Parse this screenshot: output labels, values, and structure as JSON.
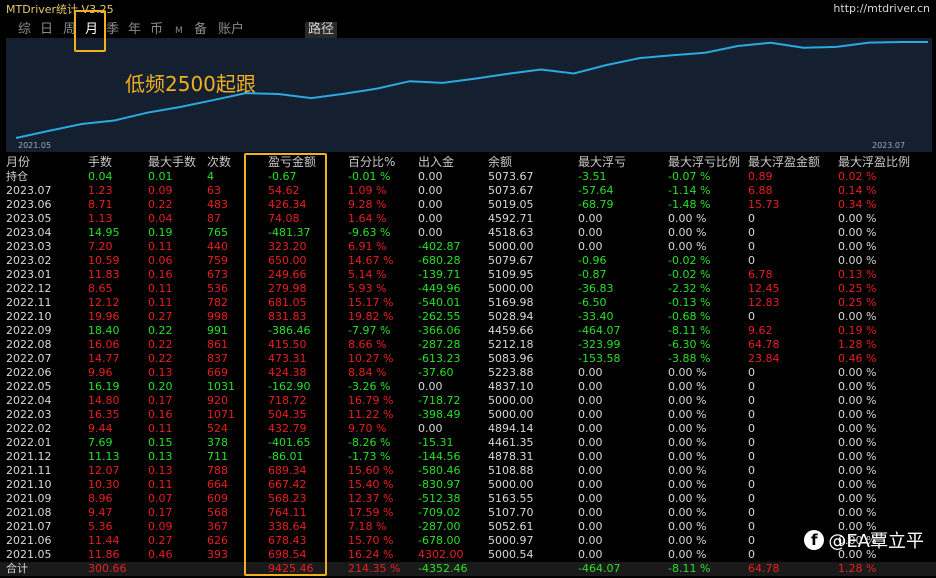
{
  "app": {
    "title": "MTDriver统计  V3.25",
    "url": "http://mtdriver.cn"
  },
  "tabs": [
    {
      "label": "综",
      "active": false
    },
    {
      "label": "日",
      "active": false
    },
    {
      "label": "周",
      "active": false
    },
    {
      "label": "月",
      "active": true
    },
    {
      "label": "季",
      "active": false
    },
    {
      "label": "年",
      "active": false
    },
    {
      "label": "币",
      "active": false
    },
    {
      "label": "M",
      "active": false
    },
    {
      "label": "备",
      "active": false
    },
    {
      "label": "账户",
      "active": false
    },
    {
      "label": "路径",
      "active": false
    }
  ],
  "overlay_text": "低频2500起跟",
  "chart_data": {
    "type": "line",
    "x_start_label": "2021.05",
    "x_end_label": "2023.07",
    "line_color": "#2aa8e0",
    "background": "#142030"
  },
  "table": {
    "headers": [
      "月份",
      "手数",
      "最大手数",
      "次数",
      "盈亏金额",
      "百分比%",
      "出入金",
      "余额",
      "最大浮亏",
      "最大浮亏比例",
      "最大浮盈金额",
      "最大浮盈比例"
    ],
    "rows": [
      [
        "持仓",
        "0.04",
        "0.01",
        "4",
        "-0.67",
        "-0.01 %",
        "0.00",
        "5073.67",
        "-3.51",
        "-0.07 %",
        "0.89",
        "0.02 %"
      ],
      [
        "2023.07",
        "1.23",
        "0.09",
        "63",
        "54.62",
        "1.09 %",
        "0.00",
        "5073.67",
        "-57.64",
        "-1.14 %",
        "6.88",
        "0.14 %"
      ],
      [
        "2023.06",
        "8.71",
        "0.22",
        "483",
        "426.34",
        "9.28 %",
        "0.00",
        "5019.05",
        "-68.79",
        "-1.48 %",
        "15.73",
        "0.34 %"
      ],
      [
        "2023.05",
        "1.13",
        "0.04",
        "87",
        "74.08",
        "1.64 %",
        "0.00",
        "4592.71",
        "0.00",
        "0.00 %",
        "0",
        "0.00 %"
      ],
      [
        "2023.04",
        "14.95",
        "0.19",
        "765",
        "-481.37",
        "-9.63 %",
        "0.00",
        "4518.63",
        "0.00",
        "0.00 %",
        "0",
        "0.00 %"
      ],
      [
        "2023.03",
        "7.20",
        "0.11",
        "440",
        "323.20",
        "6.91 %",
        "-402.87",
        "5000.00",
        "0.00",
        "0.00 %",
        "0",
        "0.00 %"
      ],
      [
        "2023.02",
        "10.59",
        "0.06",
        "759",
        "650.00",
        "14.67 %",
        "-680.28",
        "5079.67",
        "-0.96",
        "-0.02 %",
        "0",
        "0.00 %"
      ],
      [
        "2023.01",
        "11.83",
        "0.16",
        "673",
        "249.66",
        "5.14 %",
        "-139.71",
        "5109.95",
        "-0.87",
        "-0.02 %",
        "6.78",
        "0.13 %"
      ],
      [
        "2022.12",
        "8.65",
        "0.11",
        "536",
        "279.98",
        "5.93 %",
        "-449.96",
        "5000.00",
        "-36.83",
        "-2.32 %",
        "12.45",
        "0.25 %"
      ],
      [
        "2022.11",
        "12.12",
        "0.11",
        "782",
        "681.05",
        "15.17 %",
        "-540.01",
        "5169.98",
        "-6.50",
        "-0.13 %",
        "12.83",
        "0.25 %"
      ],
      [
        "2022.10",
        "19.96",
        "0.27",
        "998",
        "831.83",
        "19.82 %",
        "-262.55",
        "5028.94",
        "-33.40",
        "-0.68 %",
        "0",
        "0.00 %"
      ],
      [
        "2022.09",
        "18.40",
        "0.22",
        "991",
        "-386.46",
        "-7.97 %",
        "-366.06",
        "4459.66",
        "-464.07",
        "-8.11 %",
        "9.62",
        "0.19 %"
      ],
      [
        "2022.08",
        "16.06",
        "0.22",
        "861",
        "415.50",
        "8.66 %",
        "-287.28",
        "5212.18",
        "-323.99",
        "-6.30 %",
        "64.78",
        "1.28 %"
      ],
      [
        "2022.07",
        "14.77",
        "0.22",
        "837",
        "473.31",
        "10.27 %",
        "-613.23",
        "5083.96",
        "-153.58",
        "-3.88 %",
        "23.84",
        "0.46 %"
      ],
      [
        "2022.06",
        "9.96",
        "0.13",
        "669",
        "424.38",
        "8.84 %",
        "-37.60",
        "5223.88",
        "0.00",
        "0.00 %",
        "0",
        "0.00 %"
      ],
      [
        "2022.05",
        "16.19",
        "0.20",
        "1031",
        "-162.90",
        "-3.26 %",
        "0.00",
        "4837.10",
        "0.00",
        "0.00 %",
        "0",
        "0.00 %"
      ],
      [
        "2022.04",
        "14.80",
        "0.17",
        "920",
        "718.72",
        "16.79 %",
        "-718.72",
        "5000.00",
        "0.00",
        "0.00 %",
        "0",
        "0.00 %"
      ],
      [
        "2022.03",
        "16.35",
        "0.16",
        "1071",
        "504.35",
        "11.22 %",
        "-398.49",
        "5000.00",
        "0.00",
        "0.00 %",
        "0",
        "0.00 %"
      ],
      [
        "2022.02",
        "9.44",
        "0.11",
        "524",
        "432.79",
        "9.70 %",
        "0.00",
        "4894.14",
        "0.00",
        "0.00 %",
        "0",
        "0.00 %"
      ],
      [
        "2022.01",
        "7.69",
        "0.15",
        "378",
        "-401.65",
        "-8.26 %",
        "-15.31",
        "4461.35",
        "0.00",
        "0.00 %",
        "0",
        "0.00 %"
      ],
      [
        "2021.12",
        "11.13",
        "0.13",
        "711",
        "-86.01",
        "-1.73 %",
        "-144.56",
        "4878.31",
        "0.00",
        "0.00 %",
        "0",
        "0.00 %"
      ],
      [
        "2021.11",
        "12.07",
        "0.13",
        "788",
        "689.34",
        "15.60 %",
        "-580.46",
        "5108.88",
        "0.00",
        "0.00 %",
        "0",
        "0.00 %"
      ],
      [
        "2021.10",
        "10.30",
        "0.11",
        "664",
        "667.42",
        "15.40 %",
        "-830.97",
        "5000.00",
        "0.00",
        "0.00 %",
        "0",
        "0.00 %"
      ],
      [
        "2021.09",
        "8.96",
        "0.07",
        "609",
        "568.23",
        "12.37 %",
        "-512.38",
        "5163.55",
        "0.00",
        "0.00 %",
        "0",
        "0.00 %"
      ],
      [
        "2021.08",
        "9.47",
        "0.17",
        "568",
        "764.11",
        "17.59 %",
        "-709.02",
        "5107.70",
        "0.00",
        "0.00 %",
        "0",
        "0.00 %"
      ],
      [
        "2021.07",
        "5.36",
        "0.09",
        "367",
        "338.64",
        "7.18 %",
        "-287.00",
        "5052.61",
        "0.00",
        "0.00 %",
        "0",
        "0.00 %"
      ],
      [
        "2021.06",
        "11.44",
        "0.27",
        "626",
        "678.43",
        "15.70 %",
        "-678.00",
        "5000.97",
        "0.00",
        "0.00 %",
        "0",
        "0.00 %"
      ],
      [
        "2021.05",
        "11.86",
        "0.46",
        "393",
        "698.54",
        "16.24 %",
        "4302.00",
        "5000.54",
        "0.00",
        "0.00 %",
        "0",
        "0.00 %"
      ]
    ],
    "total": [
      "合计",
      "300.66",
      "",
      "",
      "9425.46",
      "214.35 %",
      "-4352.46",
      "",
      "-464.07",
      "-8.11 %",
      "64.78",
      "1.28 %"
    ]
  },
  "watermark": {
    "icon": "facebook-icon",
    "text": "@EA覃立平"
  },
  "colors": {
    "profit": "#e62020",
    "loss": "#28e028",
    "neutral": "#d8d8d8",
    "highlight": "#f0b020",
    "title": "#e8c86a"
  }
}
